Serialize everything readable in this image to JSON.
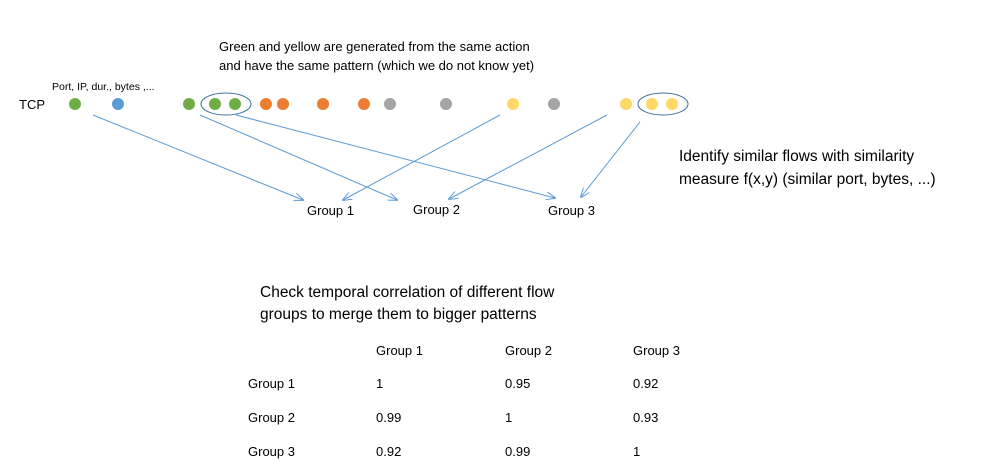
{
  "annotation_top": [
    "Green and yellow are generated from the same action",
    "and have the same pattern (which we do not know yet)"
  ],
  "features_label": "Port, IP, dur., bytes ,...",
  "protocol_label": "TCP",
  "flow_colors": {
    "green": "#70ad47",
    "blue": "#5b9bd5",
    "orange": "#ed7d31",
    "gray": "#a5a5a5",
    "yellow": "#ffd966"
  },
  "arrow_color": "#5b9bd5",
  "group_labels": [
    "Group 1",
    "Group 2",
    "Group 3"
  ],
  "annotation_right": [
    "Identify similar flows with similarity",
    "measure f(x,y) (similar port, bytes, ...)"
  ],
  "annotation_bottom": [
    "Check temporal correlation of different flow",
    "groups to merge them to bigger patterns"
  ],
  "table": {
    "columns": [
      "Group 1",
      "Group 2",
      "Group 3"
    ],
    "rows": [
      {
        "label": "Group 1",
        "values": [
          "1",
          "0.95",
          "0.92"
        ]
      },
      {
        "label": "Group 2",
        "values": [
          "0.99",
          "1",
          "0.93"
        ]
      },
      {
        "label": "Group 3",
        "values": [
          "0.92",
          "0.99",
          "1"
        ]
      }
    ]
  }
}
